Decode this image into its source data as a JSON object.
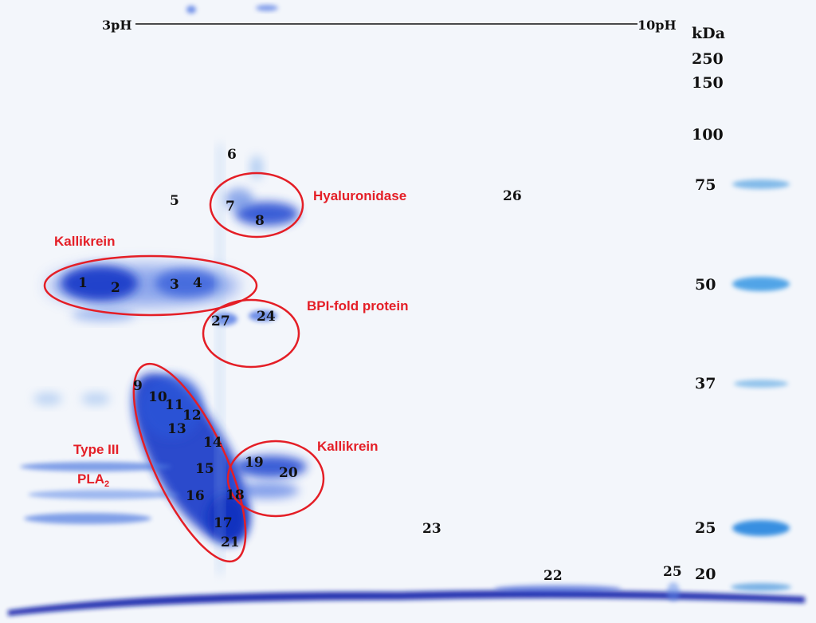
{
  "axis": {
    "left_label": "3pH",
    "right_label": "10pH",
    "mw_unit": "kDa"
  },
  "markers": [
    "250",
    "150",
    "100",
    "75",
    "50",
    "37",
    "25",
    "20"
  ],
  "annotations": {
    "hyaluronidase": "Hyaluronidase",
    "kallikrein_top": "Kallikrein",
    "bpi": "BPI-fold protein",
    "kallikrein_bottom": "Kallikrein",
    "pla2_line1": "Type III",
    "pla2_line2": "PLA",
    "pla2_sub": "2"
  },
  "spots": [
    "1",
    "2",
    "3",
    "4",
    "5",
    "6",
    "7",
    "8",
    "9",
    "10",
    "11",
    "12",
    "13",
    "14",
    "15",
    "16",
    "17",
    "18",
    "19",
    "20",
    "21",
    "22",
    "23",
    "24",
    "25",
    "26",
    "27"
  ],
  "colors": {
    "stain": "#1f4fd6",
    "stain_dark": "#0a1fa8",
    "ladder": "#5aa0e0",
    "annotation": "#e41e26"
  }
}
